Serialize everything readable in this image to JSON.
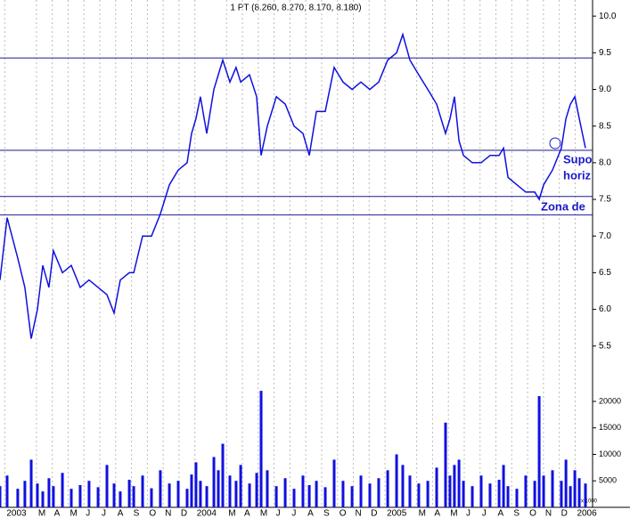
{
  "chart_data": {
    "type": "line",
    "title": "1 PT (8.260, 8.270, 8.170, 8.180)",
    "x": [
      -0.3,
      0.15,
      0.82,
      1.27,
      1.67,
      2.06,
      2.4,
      2.79,
      3.07,
      3.64,
      4.2,
      4.76,
      5.32,
      5.89,
      6.45,
      6.9,
      7.29,
      7.86,
      8.14,
      8.7,
      9.26,
      9.82,
      10.39,
      10.95,
      11.51,
      11.79,
      12.07,
      12.35,
      12.75,
      13.2,
      13.48,
      13.76,
      14.21,
      14.6,
      14.89,
      15.45,
      15.9,
      16.18,
      16.57,
      17.14,
      17.7,
      18.26,
      18.82,
      19.22,
      19.67,
      20.23,
      20.79,
      21.35,
      21.92,
      22.48,
      23.04,
      23.6,
      24.17,
      24.73,
      25.12,
      25.57,
      26.13,
      26.7,
      27.26,
      27.82,
      28.1,
      28.38,
      28.67,
      28.95,
      29.51,
      30.07,
      30.63,
      31.2,
      31.48,
      31.76,
      32.32,
      32.88,
      33.45,
      33.73,
      34.01,
      34.57,
      35.13,
      35.42,
      35.7,
      35.98,
      36.26,
      36.65
    ],
    "values": [
      6.4,
      7.25,
      6.7,
      6.3,
      5.6,
      6.0,
      6.6,
      6.3,
      6.8,
      6.5,
      6.6,
      6.3,
      6.4,
      6.3,
      6.2,
      5.95,
      6.4,
      6.5,
      6.5,
      7.0,
      7.0,
      7.3,
      7.7,
      7.9,
      8.0,
      8.4,
      8.6,
      8.9,
      8.4,
      9.0,
      9.2,
      9.4,
      9.1,
      9.3,
      9.1,
      9.2,
      8.9,
      8.1,
      8.5,
      8.9,
      8.8,
      8.5,
      8.4,
      8.1,
      8.7,
      8.7,
      9.3,
      9.1,
      9.0,
      9.1,
      9.0,
      9.1,
      9.4,
      9.5,
      9.75,
      9.4,
      9.2,
      9.0,
      8.8,
      8.4,
      8.6,
      8.9,
      8.3,
      8.1,
      8.0,
      8.0,
      8.1,
      8.1,
      8.2,
      7.8,
      7.7,
      7.6,
      7.6,
      7.5,
      7.7,
      7.9,
      8.2,
      8.6,
      8.8,
      8.9,
      8.6,
      8.2
    ],
    "color": "#1010e0",
    "xlim": [
      -0.3,
      37.1
    ],
    "xticks": [
      {
        "value": 0,
        "label": "2003"
      },
      {
        "value": 2,
        "label": "M"
      },
      {
        "value": 3,
        "label": "A"
      },
      {
        "value": 4,
        "label": "M"
      },
      {
        "value": 5,
        "label": "J"
      },
      {
        "value": 6,
        "label": "J"
      },
      {
        "value": 7,
        "label": "A"
      },
      {
        "value": 8,
        "label": "S"
      },
      {
        "value": 9,
        "label": "O"
      },
      {
        "value": 10,
        "label": "N"
      },
      {
        "value": 11,
        "label": "D"
      },
      {
        "value": 12,
        "label": "2004"
      },
      {
        "value": 14,
        "label": "M"
      },
      {
        "value": 15,
        "label": "A"
      },
      {
        "value": 16,
        "label": "M"
      },
      {
        "value": 17,
        "label": "J"
      },
      {
        "value": 18,
        "label": "J"
      },
      {
        "value": 19,
        "label": "A"
      },
      {
        "value": 20,
        "label": "S"
      },
      {
        "value": 21,
        "label": "O"
      },
      {
        "value": 22,
        "label": "N"
      },
      {
        "value": 23,
        "label": "D"
      },
      {
        "value": 24,
        "label": "2005"
      },
      {
        "value": 26,
        "label": "M"
      },
      {
        "value": 27,
        "label": "A"
      },
      {
        "value": 28,
        "label": "M"
      },
      {
        "value": 29,
        "label": "J"
      },
      {
        "value": 30,
        "label": "J"
      },
      {
        "value": 31,
        "label": "A"
      },
      {
        "value": 32,
        "label": "S"
      },
      {
        "value": 33,
        "label": "O"
      },
      {
        "value": 34,
        "label": "N"
      },
      {
        "value": 35,
        "label": "D"
      },
      {
        "value": 36,
        "label": "2006"
      }
    ],
    "ylim": [
      5.06,
      10.22
    ],
    "yticks": [
      {
        "value": 10,
        "label": "10.0"
      },
      9.5,
      {
        "value": 9,
        "label": "9.0"
      },
      8.5,
      {
        "value": 8,
        "label": "8.0"
      },
      7.5,
      {
        "value": 7,
        "label": "7.0"
      },
      6.5,
      {
        "value": 6,
        "label": "6.0"
      },
      5.5
    ],
    "grid": true,
    "levels": [
      9.43,
      8.17,
      7.54,
      7.29
    ],
    "level_color": "#1a1a90",
    "annotations": [
      "Supo",
      "horiz",
      "Zona de"
    ],
    "volume": {
      "values": [
        4000,
        6000,
        3500,
        5000,
        9000,
        4500,
        3000,
        5500,
        4000,
        6500,
        3500,
        4200,
        5000,
        3800,
        8000,
        4500,
        3000,
        5200,
        4000,
        6000,
        3600,
        7000,
        4500,
        5000,
        3500,
        6200,
        8500,
        5000,
        4000,
        9500,
        7000,
        12000,
        6000,
        5000,
        8000,
        4500,
        6500,
        22000,
        7000,
        4000,
        5500,
        3500,
        6000,
        4200,
        5000,
        3800,
        9000,
        5000,
        4000,
        6000,
        4500,
        5500,
        7000,
        10000,
        8000,
        6000,
        4500,
        5000,
        7500,
        16000,
        6000,
        8000,
        9000,
        5000,
        4000,
        6000,
        4500,
        5200,
        8000,
        4000,
        3500,
        6000,
        5000,
        21000,
        6000,
        7000,
        5000,
        9000,
        4000,
        7000,
        5500,
        4500
      ],
      "color": "#1010e0",
      "ylim": [
        0,
        23530
      ],
      "yticks": [
        5000,
        10000,
        15000,
        20000
      ],
      "note": "x 1000"
    }
  }
}
